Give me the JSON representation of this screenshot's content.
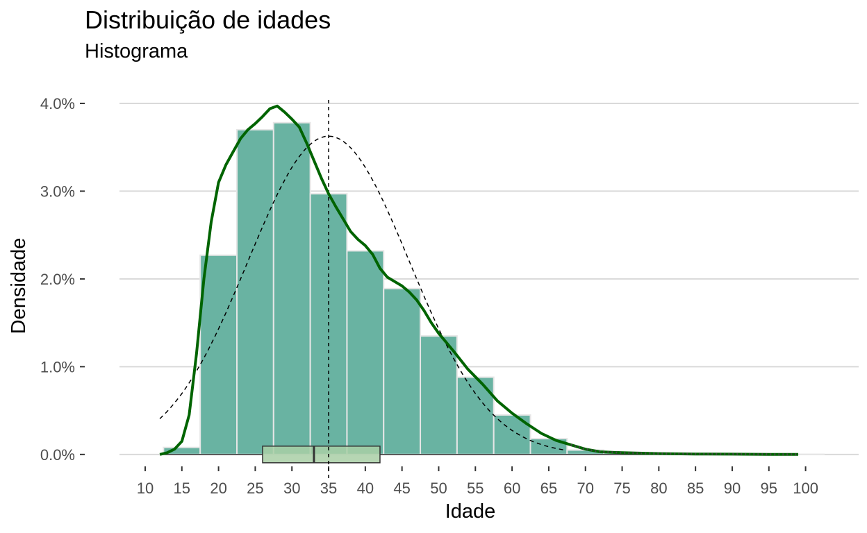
{
  "chart_data": {
    "type": "bar",
    "title": "Distribuição de idades",
    "subtitle": "Histograma",
    "xlabel": "Idade",
    "ylabel": "Densidade",
    "xlim": [
      6.5,
      102.5
    ],
    "ylim": [
      -0.0012,
      0.0415
    ],
    "x_ticks": [
      10,
      15,
      20,
      25,
      30,
      35,
      40,
      45,
      50,
      55,
      60,
      65,
      70,
      75,
      80,
      85,
      90,
      95,
      100
    ],
    "y_ticks": [
      0,
      0.01,
      0.02,
      0.03,
      0.04
    ],
    "y_tick_labels": [
      "0.0%",
      "1.0%",
      "2.0%",
      "3.0%",
      "4.0%"
    ],
    "grid": "horizontal",
    "colors": {
      "bars": "#69b3a2",
      "bar_outline": "#e6e6e6",
      "density_line": "#006400",
      "normal_curve": "#000000",
      "boxplot_fill": "#a9cfa6",
      "grid": "#d9d9d9"
    },
    "histogram": {
      "bin_width": 5,
      "bins": [
        {
          "start": 12.5,
          "end": 17.5,
          "density": 0.0008
        },
        {
          "start": 17.5,
          "end": 22.5,
          "density": 0.0227
        },
        {
          "start": 22.5,
          "end": 27.5,
          "density": 0.037
        },
        {
          "start": 27.5,
          "end": 32.5,
          "density": 0.0378
        },
        {
          "start": 32.5,
          "end": 37.5,
          "density": 0.0297
        },
        {
          "start": 37.5,
          "end": 42.5,
          "density": 0.0232
        },
        {
          "start": 42.5,
          "end": 47.5,
          "density": 0.0189
        },
        {
          "start": 47.5,
          "end": 52.5,
          "density": 0.0135
        },
        {
          "start": 52.5,
          "end": 57.5,
          "density": 0.0088
        },
        {
          "start": 57.5,
          "end": 62.5,
          "density": 0.0045
        },
        {
          "start": 62.5,
          "end": 67.5,
          "density": 0.0018
        },
        {
          "start": 67.5,
          "end": 72.5,
          "density": 0.0005
        },
        {
          "start": 72.5,
          "end": 77.5,
          "density": 0.0002
        },
        {
          "start": 77.5,
          "end": 82.5,
          "density": 0.0001
        },
        {
          "start": 82.5,
          "end": 87.5,
          "density": 0.0001
        },
        {
          "start": 87.5,
          "end": 92.5,
          "density": 5e-05
        },
        {
          "start": 92.5,
          "end": 97.5,
          "density": 3e-05
        },
        {
          "start": 97.5,
          "end": 102.5,
          "density": 2e-05
        }
      ]
    },
    "kernel_density": {
      "x": [
        12,
        13,
        14,
        15,
        16,
        17,
        18,
        19,
        20,
        21,
        22,
        23,
        24,
        25,
        26,
        27,
        28,
        29,
        30,
        31,
        32,
        33,
        34,
        35,
        36,
        37,
        38,
        39,
        40,
        41,
        42,
        43,
        44,
        45,
        46,
        47,
        48,
        49,
        50,
        52,
        54,
        56,
        58,
        60,
        62,
        64,
        66,
        68,
        70,
        72,
        75,
        80,
        85,
        90,
        95,
        99
      ],
      "y": [
        0.0,
        0.0002,
        0.0006,
        0.0015,
        0.0045,
        0.0115,
        0.02,
        0.0265,
        0.031,
        0.033,
        0.0345,
        0.036,
        0.037,
        0.0377,
        0.0385,
        0.0394,
        0.0397,
        0.039,
        0.0382,
        0.0373,
        0.0355,
        0.0335,
        0.0315,
        0.0297,
        0.0282,
        0.0268,
        0.0254,
        0.0245,
        0.0238,
        0.0228,
        0.0212,
        0.0202,
        0.0197,
        0.0192,
        0.0185,
        0.0176,
        0.0164,
        0.015,
        0.0138,
        0.0118,
        0.0097,
        0.008,
        0.0061,
        0.0047,
        0.0035,
        0.0024,
        0.0016,
        0.0011,
        0.0006,
        0.0003,
        0.0002,
        0.0001,
        5e-05,
        3e-05,
        1e-05,
        0.0
      ],
      "tail_dotted_from": 67
    },
    "normal_curve": {
      "mean": 35.0,
      "sd": 11.0,
      "x_range": [
        12,
        67
      ]
    },
    "mean_line_x": 35.0,
    "boxplot": {
      "q1": 26,
      "median": 33,
      "q3": 42,
      "whisker_low": 12,
      "whisker_high": 99
    }
  }
}
